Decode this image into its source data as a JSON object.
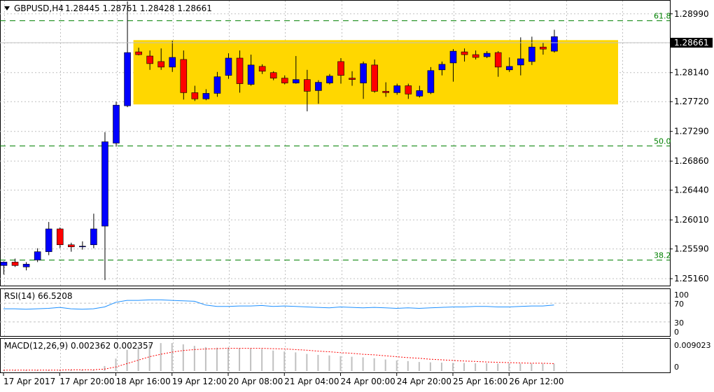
{
  "header": {
    "symbol": "GBPUSD,H4",
    "ohlc": "1.28445 1.28761 1.28428 1.28661",
    "dropdown_icon": "triangle-down-icon"
  },
  "colors": {
    "background": "#ffffff",
    "bull": "#0000ff",
    "bear": "#ff0000",
    "wick": "#000000",
    "range_box": "#ffd700",
    "fib_line": "#008000",
    "fib_label": "#008000",
    "grid": "#c0c0c0",
    "rsi_line": "#1e90ff",
    "macd_hist": "#c0c0c0",
    "macd_signal": "#ff0000"
  },
  "current_price": "1.28661",
  "price_axis": {
    "labels": [
      "1.28990",
      "1.28570",
      "1.28140",
      "1.27720",
      "1.27290",
      "1.26860",
      "1.26440",
      "1.26010",
      "1.25590",
      "1.25160"
    ]
  },
  "fib_levels": [
    {
      "label": "61.8",
      "price": 1.2889
    },
    {
      "label": "50.0",
      "price": 1.2708
    },
    {
      "label": "38.2",
      "price": 1.2543
    }
  ],
  "range_box": {
    "top": 1.2861,
    "bottom": 1.2768
  },
  "time_axis": {
    "labels": [
      "17 Apr 2017",
      "17 Apr 20:00",
      "18 Apr 16:00",
      "19 Apr 12:00",
      "20 Apr 08:00",
      "21 Apr 04:00",
      "24 Apr 00:00",
      "24 Apr 20:00",
      "25 Apr 16:00",
      "26 Apr 12:00"
    ]
  },
  "rsi": {
    "title": "RSI(14) 66.5208",
    "scale_labels": [
      "100",
      "70",
      "30",
      "0"
    ]
  },
  "macd": {
    "title": "MACD(12,26,9) 0.002362 0.002357",
    "scale_labels": [
      "0.009023",
      "0"
    ]
  },
  "chart_data": {
    "type": "candlestick",
    "title": "GBPUSD,H4",
    "ylim": [
      1.2506,
      1.2918
    ],
    "candles": [
      {
        "o": 1.2535,
        "h": 1.2541,
        "l": 1.2522,
        "c": 1.254
      },
      {
        "o": 1.254,
        "h": 1.2545,
        "l": 1.2533,
        "c": 1.2535
      },
      {
        "o": 1.2533,
        "h": 1.254,
        "l": 1.2528,
        "c": 1.2537
      },
      {
        "o": 1.2543,
        "h": 1.256,
        "l": 1.254,
        "c": 1.2555
      },
      {
        "o": 1.2555,
        "h": 1.2598,
        "l": 1.255,
        "c": 1.2588
      },
      {
        "o": 1.2588,
        "h": 1.259,
        "l": 1.256,
        "c": 1.2565
      },
      {
        "o": 1.2565,
        "h": 1.2568,
        "l": 1.2555,
        "c": 1.2562
      },
      {
        "o": 1.2562,
        "h": 1.257,
        "l": 1.2558,
        "c": 1.2563
      },
      {
        "o": 1.2565,
        "h": 1.261,
        "l": 1.256,
        "c": 1.2588
      },
      {
        "o": 1.2592,
        "h": 1.2728,
        "l": 1.2514,
        "c": 1.2714
      },
      {
        "o": 1.2712,
        "h": 1.2772,
        "l": 1.2707,
        "c": 1.2767
      },
      {
        "o": 1.2766,
        "h": 1.2917,
        "l": 1.2764,
        "c": 1.2843
      },
      {
        "o": 1.2844,
        "h": 1.285,
        "l": 1.2839,
        "c": 1.284
      },
      {
        "o": 1.2838,
        "h": 1.2846,
        "l": 1.2818,
        "c": 1.2827
      },
      {
        "o": 1.283,
        "h": 1.2849,
        "l": 1.2818,
        "c": 1.2822
      },
      {
        "o": 1.2822,
        "h": 1.286,
        "l": 1.2815,
        "c": 1.2836
      },
      {
        "o": 1.2833,
        "h": 1.2846,
        "l": 1.2775,
        "c": 1.2785
      },
      {
        "o": 1.2785,
        "h": 1.2795,
        "l": 1.2773,
        "c": 1.2776
      },
      {
        "o": 1.2776,
        "h": 1.279,
        "l": 1.2774,
        "c": 1.2784
      },
      {
        "o": 1.2784,
        "h": 1.2815,
        "l": 1.2779,
        "c": 1.2808
      },
      {
        "o": 1.281,
        "h": 1.2842,
        "l": 1.2805,
        "c": 1.2835
      },
      {
        "o": 1.2835,
        "h": 1.2846,
        "l": 1.2785,
        "c": 1.2798
      },
      {
        "o": 1.2797,
        "h": 1.284,
        "l": 1.2795,
        "c": 1.2825
      },
      {
        "o": 1.2823,
        "h": 1.2826,
        "l": 1.2812,
        "c": 1.2816
      },
      {
        "o": 1.2814,
        "h": 1.2816,
        "l": 1.2803,
        "c": 1.2806
      },
      {
        "o": 1.2806,
        "h": 1.281,
        "l": 1.2797,
        "c": 1.2799
      },
      {
        "o": 1.2799,
        "h": 1.2838,
        "l": 1.2798,
        "c": 1.2804
      },
      {
        "o": 1.2804,
        "h": 1.2818,
        "l": 1.2758,
        "c": 1.2787
      },
      {
        "o": 1.2788,
        "h": 1.2803,
        "l": 1.2769,
        "c": 1.28
      },
      {
        "o": 1.2799,
        "h": 1.2812,
        "l": 1.2797,
        "c": 1.2809
      },
      {
        "o": 1.283,
        "h": 1.2835,
        "l": 1.2798,
        "c": 1.281
      },
      {
        "o": 1.2806,
        "h": 1.2816,
        "l": 1.2795,
        "c": 1.2804
      },
      {
        "o": 1.2799,
        "h": 1.283,
        "l": 1.2776,
        "c": 1.2827
      },
      {
        "o": 1.2825,
        "h": 1.2833,
        "l": 1.2785,
        "c": 1.2787
      },
      {
        "o": 1.2787,
        "h": 1.28,
        "l": 1.2779,
        "c": 1.2785
      },
      {
        "o": 1.2785,
        "h": 1.2798,
        "l": 1.2782,
        "c": 1.2795
      },
      {
        "o": 1.2795,
        "h": 1.2798,
        "l": 1.2776,
        "c": 1.2783
      },
      {
        "o": 1.278,
        "h": 1.2795,
        "l": 1.2778,
        "c": 1.2788
      },
      {
        "o": 1.2785,
        "h": 1.2822,
        "l": 1.2783,
        "c": 1.2817
      },
      {
        "o": 1.2818,
        "h": 1.283,
        "l": 1.281,
        "c": 1.2826
      },
      {
        "o": 1.2828,
        "h": 1.2848,
        "l": 1.2801,
        "c": 1.2845
      },
      {
        "o": 1.2844,
        "h": 1.2849,
        "l": 1.283,
        "c": 1.284
      },
      {
        "o": 1.284,
        "h": 1.2846,
        "l": 1.2833,
        "c": 1.2836
      },
      {
        "o": 1.2837,
        "h": 1.2845,
        "l": 1.2835,
        "c": 1.2842
      },
      {
        "o": 1.2843,
        "h": 1.2845,
        "l": 1.2808,
        "c": 1.2822
      },
      {
        "o": 1.2818,
        "h": 1.2836,
        "l": 1.2815,
        "c": 1.2823
      },
      {
        "o": 1.2825,
        "h": 1.2865,
        "l": 1.281,
        "c": 1.2834
      },
      {
        "o": 1.283,
        "h": 1.2866,
        "l": 1.2825,
        "c": 1.2851
      },
      {
        "o": 1.2851,
        "h": 1.2857,
        "l": 1.284,
        "c": 1.2848
      },
      {
        "o": 1.2845,
        "h": 1.2876,
        "l": 1.2843,
        "c": 1.2866
      }
    ],
    "rsi_values": [
      58,
      58,
      57,
      58,
      59,
      61,
      58,
      57,
      58,
      62,
      72,
      76,
      76,
      77,
      77,
      76,
      75,
      74,
      66,
      63,
      63,
      64,
      64,
      65,
      63,
      64,
      63,
      62,
      61,
      60,
      62,
      61,
      60,
      61,
      60,
      59,
      60,
      59,
      60,
      61,
      62,
      62,
      63,
      63,
      62,
      62,
      63,
      64,
      64,
      66
    ],
    "macd_hist": [
      0.0003,
      0.0003,
      0.0003,
      0.0003,
      0.0003,
      0.0004,
      0.0004,
      0.0004,
      0.0004,
      0.0016,
      0.004,
      0.0068,
      0.008,
      0.0087,
      0.009,
      0.009,
      0.0086,
      0.0081,
      0.0077,
      0.0075,
      0.0076,
      0.0073,
      0.0072,
      0.0071,
      0.0066,
      0.0063,
      0.006,
      0.0055,
      0.0052,
      0.005,
      0.0048,
      0.0046,
      0.0044,
      0.0041,
      0.0037,
      0.0034,
      0.0032,
      0.0029,
      0.0028,
      0.0027,
      0.0026,
      0.0026,
      0.0025,
      0.0025,
      0.0024,
      0.0024,
      0.0024,
      0.0024,
      0.0024,
      0.0024
    ],
    "macd_signal": [
      0.0003,
      0.0003,
      0.0003,
      0.0003,
      0.0003,
      0.0003,
      0.0004,
      0.0004,
      0.0004,
      0.0006,
      0.0013,
      0.0024,
      0.0035,
      0.0046,
      0.0054,
      0.0061,
      0.0066,
      0.0069,
      0.0071,
      0.0072,
      0.0073,
      0.0073,
      0.0073,
      0.0073,
      0.0072,
      0.0071,
      0.0069,
      0.0067,
      0.0064,
      0.0062,
      0.0059,
      0.0057,
      0.0054,
      0.0052,
      0.0049,
      0.0046,
      0.0043,
      0.0041,
      0.0038,
      0.0036,
      0.0034,
      0.0032,
      0.0031,
      0.0029,
      0.0028,
      0.0027,
      0.0026,
      0.0025,
      0.0025,
      0.0024
    ],
    "macd_ylim": [
      0,
      0.009023
    ]
  }
}
